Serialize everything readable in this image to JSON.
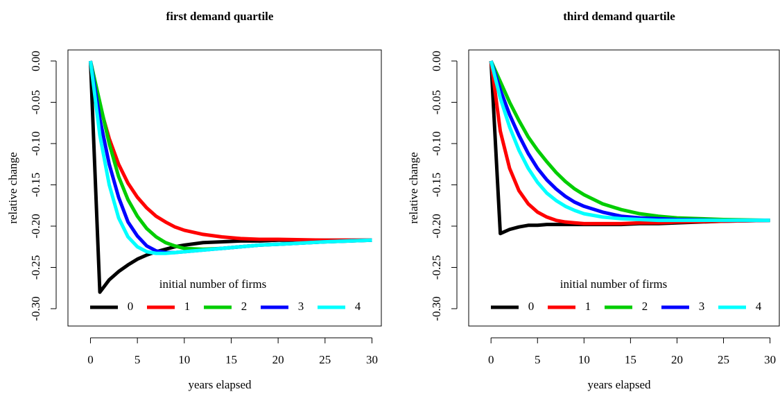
{
  "chart_data": [
    {
      "type": "line",
      "title": "first demand quartile",
      "xlabel": "years elapsed",
      "ylabel": "relative change",
      "legend_title": "initial number of firms",
      "legend": "bottom",
      "x": [
        0,
        1,
        2,
        3,
        4,
        5,
        6,
        7,
        8,
        9,
        10,
        12,
        14,
        16,
        18,
        20,
        25,
        30
      ],
      "series": [
        {
          "name": "0",
          "color": "#000000",
          "values": [
            0,
            -0.28,
            -0.265,
            -0.255,
            -0.247,
            -0.24,
            -0.235,
            -0.231,
            -0.228,
            -0.225,
            -0.223,
            -0.22,
            -0.219,
            -0.218,
            -0.218,
            -0.217,
            -0.217,
            -0.217
          ]
        },
        {
          "name": "1",
          "color": "#ff0000",
          "values": [
            0,
            -0.054,
            -0.094,
            -0.125,
            -0.148,
            -0.165,
            -0.178,
            -0.188,
            -0.195,
            -0.201,
            -0.205,
            -0.21,
            -0.213,
            -0.215,
            -0.216,
            -0.216,
            -0.217,
            -0.217
          ]
        },
        {
          "name": "2",
          "color": "#00cd00",
          "values": [
            0,
            -0.05,
            -0.1,
            -0.14,
            -0.168,
            -0.188,
            -0.203,
            -0.213,
            -0.22,
            -0.224,
            -0.227,
            -0.228,
            -0.227,
            -0.225,
            -0.223,
            -0.222,
            -0.219,
            -0.217
          ]
        },
        {
          "name": "3",
          "color": "#0000ff",
          "values": [
            0,
            -0.07,
            -0.125,
            -0.165,
            -0.195,
            -0.212,
            -0.224,
            -0.23,
            -0.232,
            -0.232,
            -0.231,
            -0.229,
            -0.227,
            -0.225,
            -0.223,
            -0.222,
            -0.219,
            -0.217
          ]
        },
        {
          "name": "4",
          "color": "#00ffff",
          "values": [
            0,
            -0.09,
            -0.15,
            -0.19,
            -0.213,
            -0.225,
            -0.231,
            -0.233,
            -0.233,
            -0.232,
            -0.231,
            -0.229,
            -0.227,
            -0.225,
            -0.223,
            -0.222,
            -0.219,
            -0.217
          ]
        }
      ],
      "xlim": [
        -2.4,
        31
      ],
      "ylim": [
        -0.321,
        0.0134
      ],
      "xticks": [
        0,
        5,
        10,
        15,
        20,
        25,
        30
      ],
      "yticks": [
        {
          "value": -0.3,
          "label": "-0.30"
        },
        {
          "value": -0.25,
          "label": "-0.25"
        },
        {
          "value": -0.2,
          "label": "-0.20"
        },
        {
          "value": -0.15,
          "label": "-0.15"
        },
        {
          "value": -0.1,
          "label": "-0.10"
        },
        {
          "value": -0.05,
          "label": "-0.05"
        },
        {
          "value": 0,
          "label": "0.00"
        }
      ]
    },
    {
      "type": "line",
      "title": "third demand quartile",
      "xlabel": "years elapsed",
      "ylabel": "relative change",
      "legend_title": "initial number of firms",
      "legend": "bottom",
      "x": [
        0,
        1,
        2,
        3,
        4,
        5,
        6,
        7,
        8,
        9,
        10,
        12,
        14,
        16,
        18,
        20,
        25,
        30
      ],
      "series": [
        {
          "name": "0",
          "color": "#000000",
          "values": [
            0,
            -0.209,
            -0.204,
            -0.201,
            -0.199,
            -0.199,
            -0.198,
            -0.198,
            -0.198,
            -0.198,
            -0.198,
            -0.198,
            -0.198,
            -0.197,
            -0.197,
            -0.196,
            -0.194,
            -0.193
          ]
        },
        {
          "name": "1",
          "color": "#ff0000",
          "values": [
            0,
            -0.085,
            -0.13,
            -0.157,
            -0.173,
            -0.183,
            -0.189,
            -0.193,
            -0.195,
            -0.196,
            -0.197,
            -0.197,
            -0.197,
            -0.196,
            -0.196,
            -0.195,
            -0.194,
            -0.193
          ]
        },
        {
          "name": "2",
          "color": "#00cd00",
          "values": [
            0,
            -0.025,
            -0.05,
            -0.072,
            -0.092,
            -0.108,
            -0.122,
            -0.135,
            -0.146,
            -0.155,
            -0.162,
            -0.173,
            -0.18,
            -0.185,
            -0.188,
            -0.19,
            -0.192,
            -0.193
          ]
        },
        {
          "name": "3",
          "color": "#0000ff",
          "values": [
            0,
            -0.035,
            -0.065,
            -0.09,
            -0.112,
            -0.13,
            -0.144,
            -0.155,
            -0.164,
            -0.171,
            -0.176,
            -0.183,
            -0.188,
            -0.19,
            -0.191,
            -0.192,
            -0.193,
            -0.193
          ]
        },
        {
          "name": "4",
          "color": "#00ffff",
          "values": [
            0,
            -0.045,
            -0.08,
            -0.108,
            -0.13,
            -0.147,
            -0.16,
            -0.169,
            -0.176,
            -0.181,
            -0.185,
            -0.189,
            -0.191,
            -0.192,
            -0.193,
            -0.193,
            -0.193,
            -0.193
          ]
        }
      ],
      "xlim": [
        -2.4,
        31
      ],
      "ylim": [
        -0.321,
        0.0134
      ],
      "xticks": [
        0,
        5,
        10,
        15,
        20,
        25,
        30
      ],
      "yticks": [
        {
          "value": -0.3,
          "label": "-0.30"
        },
        {
          "value": -0.25,
          "label": "-0.25"
        },
        {
          "value": -0.2,
          "label": "-0.20"
        },
        {
          "value": -0.15,
          "label": "-0.15"
        },
        {
          "value": -0.1,
          "label": "-0.10"
        },
        {
          "value": -0.05,
          "label": "-0.05"
        },
        {
          "value": 0,
          "label": "0.00"
        }
      ]
    }
  ]
}
